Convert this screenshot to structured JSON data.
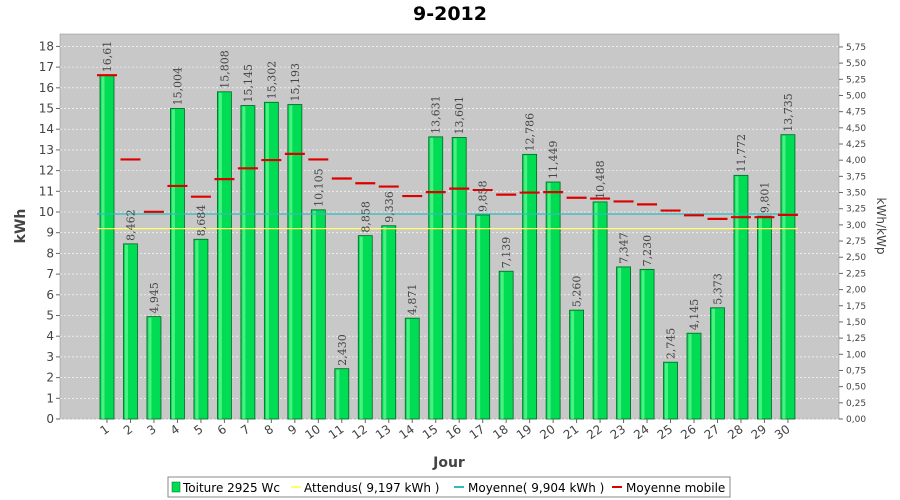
{
  "chart_data": {
    "type": "bar",
    "title": "9-2012",
    "xlabel": "Jour",
    "ylabel": "kWh",
    "ylabel_right": "kWh/kWp",
    "ylim": [
      0,
      18.6
    ],
    "yticks": [
      "0",
      "1",
      "2",
      "3",
      "4",
      "5",
      "6",
      "7",
      "8",
      "9",
      "10",
      "11",
      "12",
      "13",
      "14",
      "15",
      "16",
      "17",
      "18"
    ],
    "ylim_right": [
      0,
      5.95
    ],
    "yticks_right": [
      "0,00",
      "0,25",
      "0,50",
      "0,75",
      "1,00",
      "1,25",
      "1,50",
      "1,75",
      "2,00",
      "2,25",
      "2,50",
      "2,75",
      "3,00",
      "3,25",
      "3,50",
      "3,75",
      "4,00",
      "4,25",
      "4,50",
      "4,75",
      "5,00",
      "5,25",
      "5,50",
      "5,75"
    ],
    "grid": true,
    "legend_position": "bottom",
    "categories": [
      "1",
      "2",
      "3",
      "4",
      "5",
      "6",
      "7",
      "8",
      "9",
      "10",
      "11",
      "12",
      "13",
      "14",
      "15",
      "16",
      "17",
      "18",
      "19",
      "20",
      "21",
      "22",
      "23",
      "24",
      "25",
      "26",
      "27",
      "28",
      "29",
      "30"
    ],
    "series": [
      {
        "name": "Toiture 2925 Wc",
        "kind": "bar",
        "color": "#00dd55",
        "values": [
          16.61,
          8.462,
          4.945,
          15.004,
          8.684,
          15.808,
          15.145,
          15.302,
          15.193,
          10.105,
          2.43,
          8.858,
          9.336,
          4.871,
          13.631,
          13.601,
          9.858,
          7.139,
          12.786,
          11.449,
          5.26,
          10.488,
          7.347,
          7.23,
          2.745,
          4.145,
          5.373,
          11.772,
          9.801,
          13.735
        ],
        "labels": [
          "16,61",
          "8,462",
          "4,945",
          "15,004",
          "8,684",
          "15,808",
          "15,145",
          "15,302",
          "15,193",
          "10,105",
          "2,430",
          "8,858",
          "9,336",
          "4,871",
          "13,631",
          "13,601",
          "9,858",
          "7,139",
          "12,786",
          "11,449",
          "5,260",
          "10,488",
          "7,347",
          "7,230",
          "2,745",
          "4,145",
          "5,373",
          "11,772",
          "9,801",
          "13,735"
        ]
      },
      {
        "name": "Attendus( 9,197 kWh )",
        "kind": "line",
        "color": "#ffff66",
        "value": 9.197
      },
      {
        "name": "Moyenne( 9,904 kWh )",
        "kind": "line",
        "color": "#33bbbb",
        "value": 9.904
      },
      {
        "name": "Moyenne mobile",
        "kind": "marker",
        "color": "#dd0000",
        "values": [
          16.61,
          12.54,
          10.01,
          11.26,
          10.74,
          11.59,
          12.11,
          12.51,
          12.81,
          12.54,
          11.62,
          11.39,
          11.23,
          10.77,
          10.96,
          11.13,
          11.06,
          10.84,
          10.94,
          10.96,
          10.69,
          10.65,
          10.51,
          10.37,
          10.07,
          9.84,
          9.67,
          9.75,
          9.75,
          9.86
        ]
      }
    ]
  }
}
